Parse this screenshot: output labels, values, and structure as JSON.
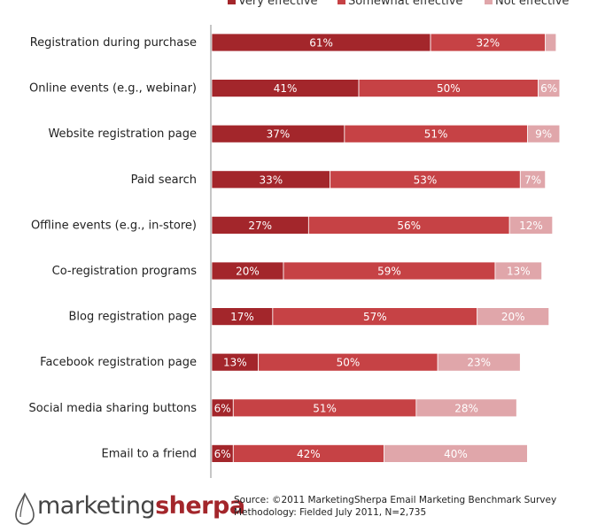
{
  "chart_data": {
    "type": "bar",
    "orientation": "horizontal",
    "stacked": true,
    "legend_position": "top-right",
    "categories": [
      "Registration during purchase",
      "Online events (e.g., webinar)",
      "Website registration page",
      "Paid search",
      "Offline events (e.g., in-store)",
      "Co-registration programs",
      "Blog registration page",
      "Facebook registration page",
      "Social media sharing buttons",
      "Email to a friend"
    ],
    "series": [
      {
        "name": "Very effective",
        "color": "#a3262b",
        "values": [
          61,
          41,
          37,
          33,
          27,
          20,
          17,
          13,
          6,
          6
        ],
        "labels": [
          "61%",
          "41%",
          "37%",
          "33%",
          "27%",
          "20%",
          "17%",
          "13%",
          "6%",
          "6%"
        ]
      },
      {
        "name": "Somewhat effective",
        "color": "#c64245",
        "values": [
          32,
          50,
          51,
          53,
          56,
          59,
          57,
          50,
          51,
          42
        ],
        "labels": [
          "32%",
          "50%",
          "51%",
          "53%",
          "56%",
          "59%",
          "57%",
          "50%",
          "51%",
          "42%"
        ]
      },
      {
        "name": "Not effective",
        "color": "#e0a6aa",
        "values": [
          3,
          6,
          9,
          7,
          12,
          13,
          20,
          23,
          28,
          40
        ],
        "labels": [
          "",
          "6%",
          "9%",
          "7%",
          "12%",
          "13%",
          "20%",
          "23%",
          "28%",
          "40%"
        ]
      }
    ],
    "xlim": [
      0,
      100
    ],
    "grid": false
  },
  "footer": {
    "logo_text_light": "marketing",
    "logo_text_bold": "sherpa",
    "source_line1": "Source: ©2011 MarketingSherpa Email Marketing Benchmark Survey",
    "source_line2": "Methodology: Fielded July 2011, N=2,735"
  }
}
